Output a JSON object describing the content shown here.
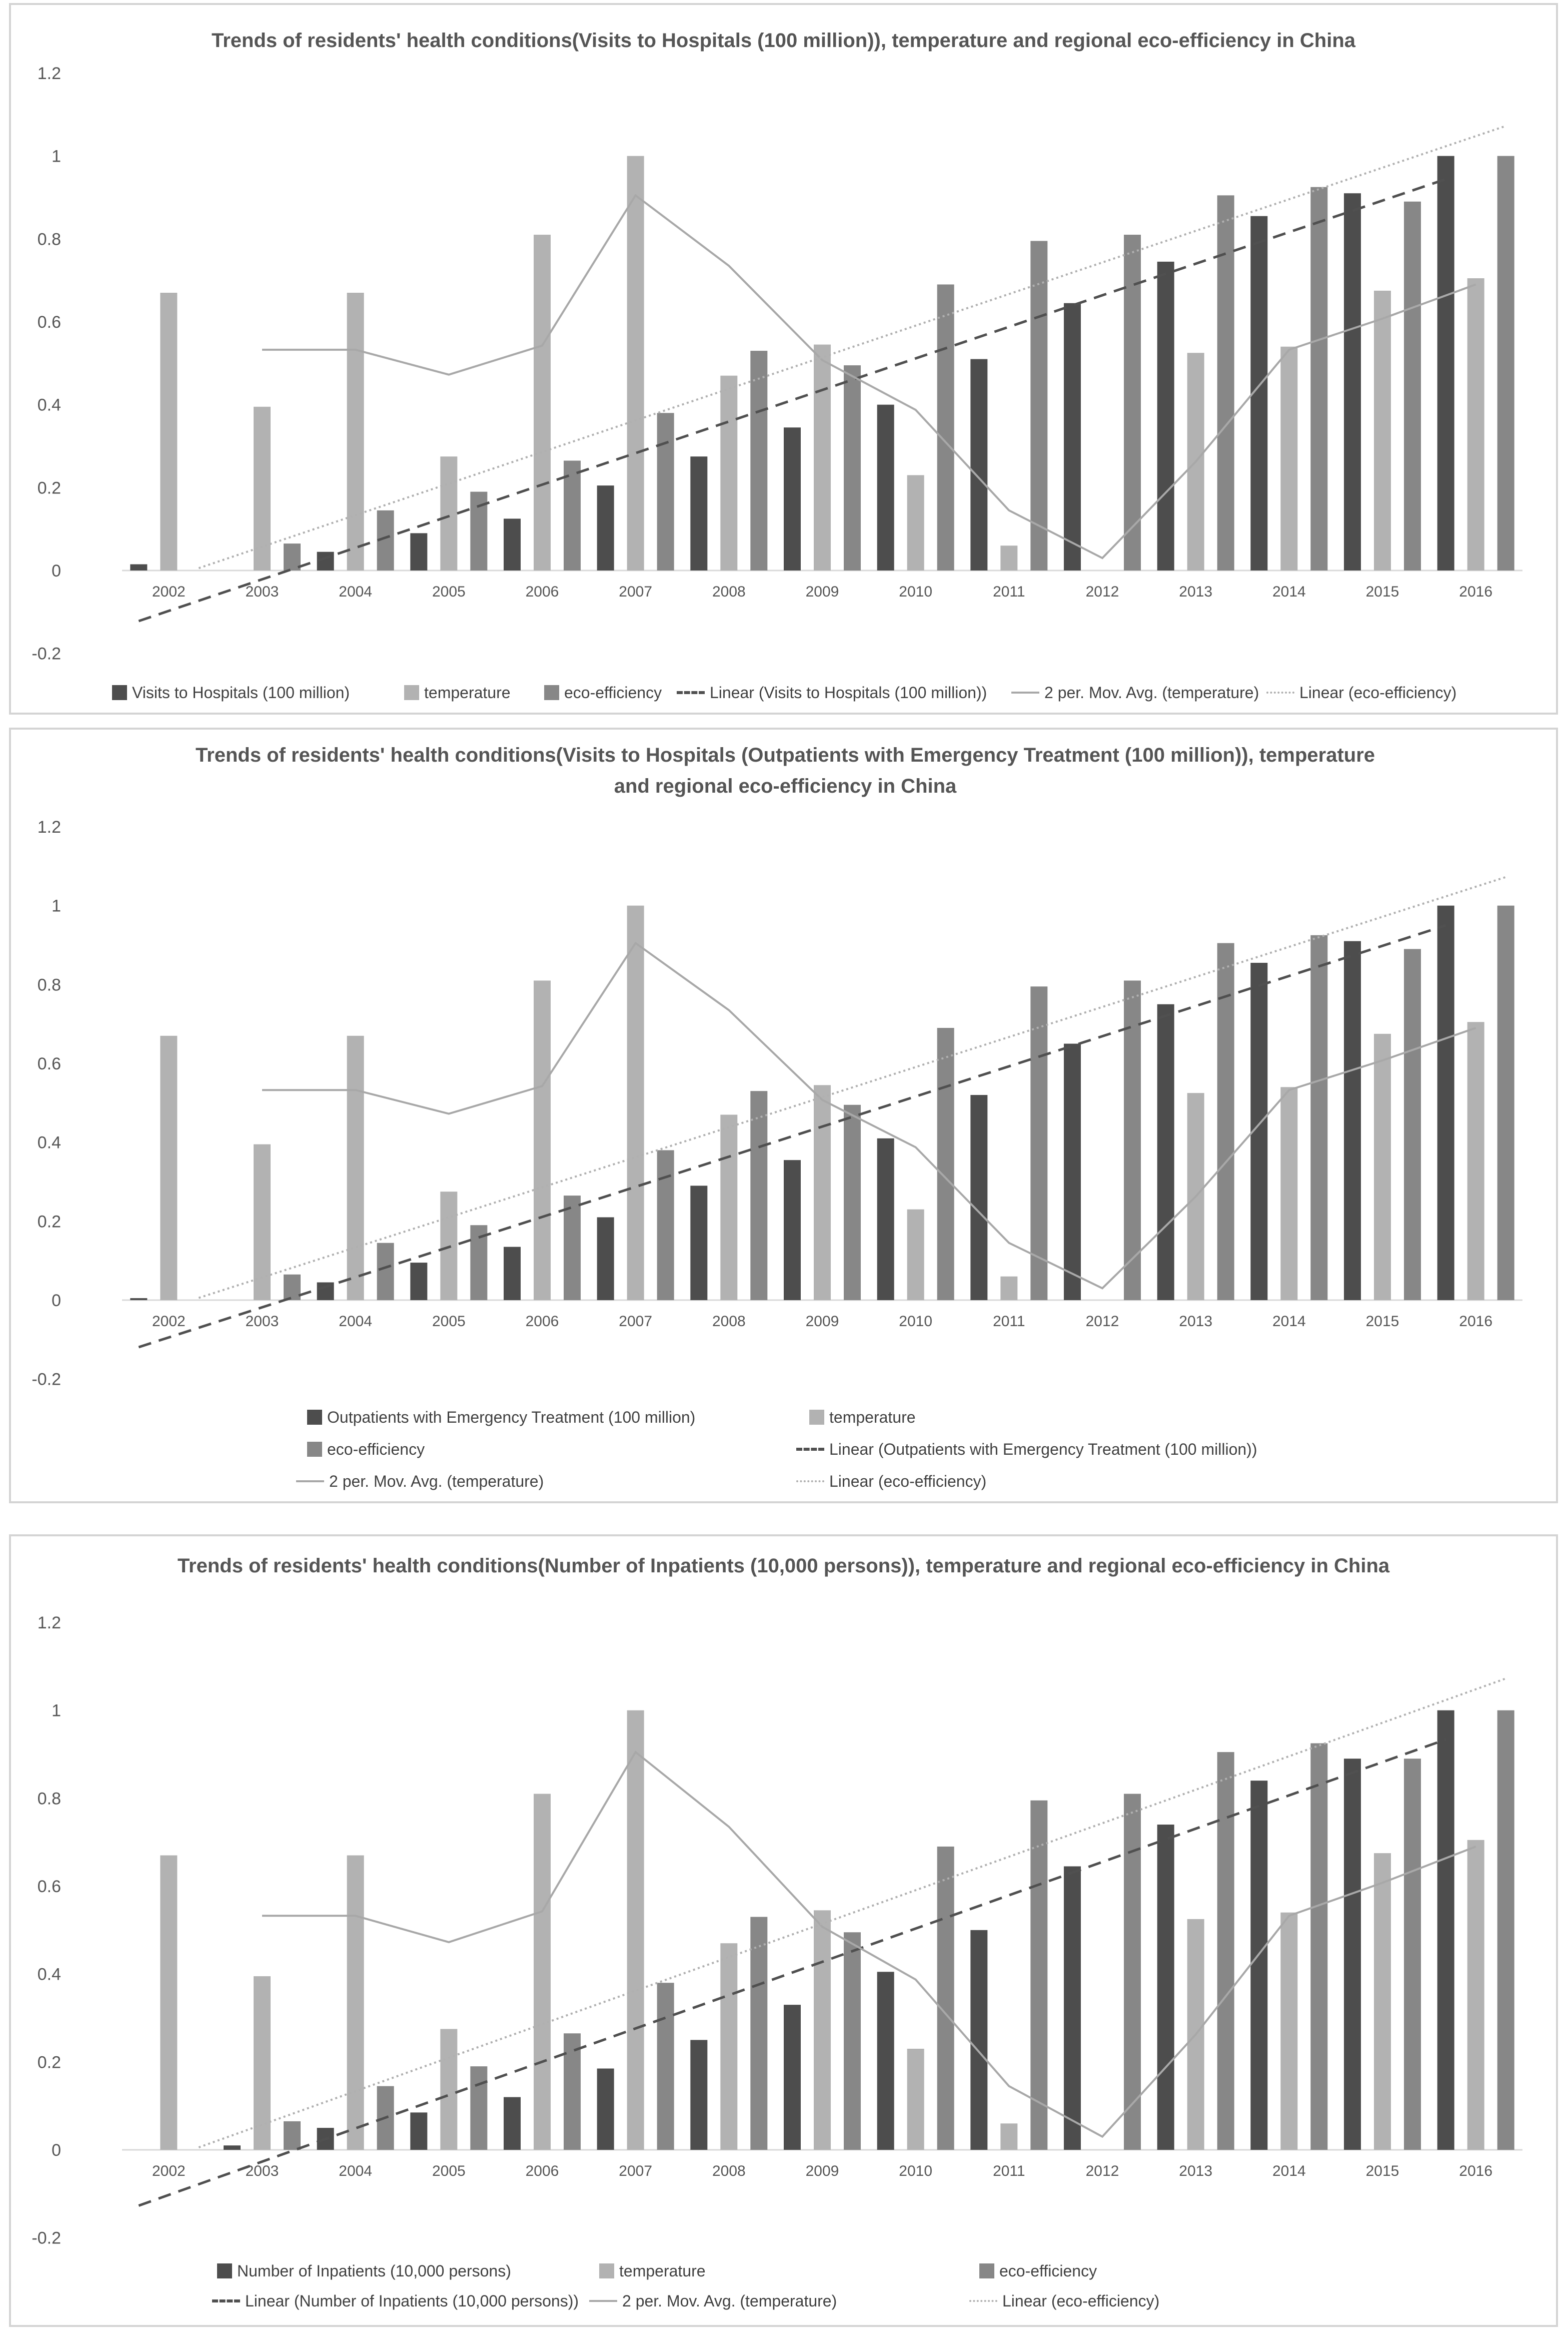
{
  "colors": {
    "series1": "#4d4d4d",
    "temperature": "#b2b2b2",
    "eco": "#878787",
    "trend1": "#505050",
    "avg": "#a8a8a8",
    "trend_eco": "#b0b0b0",
    "axis_text": "#555555",
    "grid": "#d9d9d9"
  },
  "legend_icons": {
    "bar": "square-swatch-icon",
    "dashed": "dashed-line-icon",
    "solid": "solid-line-icon",
    "dotted": "dotted-line-icon"
  },
  "chart_data": [
    {
      "type": "bar",
      "title": "Trends of residents' health conditions(Visits to Hospitals (100 million)), temperature and regional eco-efficiency in China",
      "categories": [
        "2002",
        "2003",
        "2004",
        "2005",
        "2006",
        "2007",
        "2008",
        "2009",
        "2010",
        "2011",
        "2012",
        "2013",
        "2014",
        "2015",
        "2016"
      ],
      "y_ticks": [
        "1.2",
        "1",
        "0.8",
        "0.6",
        "0.4",
        "0.2",
        "0",
        "-0.2"
      ],
      "ylim": [
        -0.2,
        1.2
      ],
      "grid": false,
      "legend_position": "bottom",
      "series": [
        {
          "name": "Visits to Hospitals (100 million)",
          "values": [
            0.015,
            0,
            0.045,
            0.09,
            0.125,
            0.205,
            0.275,
            0.345,
            0.4,
            0.51,
            0.645,
            0.745,
            0.855,
            0.91,
            1.0
          ]
        },
        {
          "name": "temperature",
          "values": [
            0.67,
            0.395,
            0.67,
            0.275,
            0.81,
            1.0,
            0.47,
            0.545,
            0.23,
            0.06,
            0,
            0.525,
            0.54,
            0.675,
            0.705
          ]
        },
        {
          "name": "eco-efficiency",
          "values": [
            0,
            0.065,
            0.145,
            0.19,
            0.265,
            0.38,
            0.53,
            0.495,
            0.69,
            0.795,
            0.81,
            0.905,
            0.925,
            0.89,
            1.0
          ]
        }
      ],
      "overlays": [
        {
          "name": "Linear (Visits to Hospitals (100 million))",
          "kind": "trend",
          "of": 0
        },
        {
          "name": "2 per. Mov. Avg. (temperature)",
          "kind": "movavg",
          "of": 1
        },
        {
          "name": "Linear (eco-efficiency)",
          "kind": "trend",
          "of": 2
        }
      ]
    },
    {
      "type": "bar",
      "title": "Trends of residents' health conditions(Visits to Hospitals (Outpatients with Emergency Treatment (100 million)), temperature and regional eco-efficiency in China",
      "categories": [
        "2002",
        "2003",
        "2004",
        "2005",
        "2006",
        "2007",
        "2008",
        "2009",
        "2010",
        "2011",
        "2012",
        "2013",
        "2014",
        "2015",
        "2016"
      ],
      "y_ticks": [
        "1.2",
        "1",
        "0.8",
        "0.6",
        "0.4",
        "0.2",
        "0",
        "-0.2"
      ],
      "ylim": [
        -0.2,
        1.2
      ],
      "grid": false,
      "legend_position": "bottom",
      "series": [
        {
          "name": "Outpatients with Emergency Treatment  (100 million)",
          "values": [
            0.005,
            0,
            0.045,
            0.095,
            0.135,
            0.21,
            0.29,
            0.355,
            0.41,
            0.52,
            0.65,
            0.75,
            0.855,
            0.91,
            1.0
          ]
        },
        {
          "name": "temperature",
          "values": [
            0.67,
            0.395,
            0.67,
            0.275,
            0.81,
            1.0,
            0.47,
            0.545,
            0.23,
            0.06,
            0,
            0.525,
            0.54,
            0.675,
            0.705
          ]
        },
        {
          "name": "eco-efficiency",
          "values": [
            0,
            0.065,
            0.145,
            0.19,
            0.265,
            0.38,
            0.53,
            0.495,
            0.69,
            0.795,
            0.81,
            0.905,
            0.925,
            0.89,
            1.0
          ]
        }
      ],
      "overlays": [
        {
          "name": "Linear (Outpatients with Emergency Treatment  (100 million))",
          "kind": "trend",
          "of": 0
        },
        {
          "name": "2 per. Mov. Avg. (temperature)",
          "kind": "movavg",
          "of": 1
        },
        {
          "name": "Linear (eco-efficiency)",
          "kind": "trend",
          "of": 2
        }
      ]
    },
    {
      "type": "bar",
      "title": "Trends of residents' health conditions(Number of Inpatients (10,000 persons)), temperature and regional eco-efficiency in China",
      "categories": [
        "2002",
        "2003",
        "2004",
        "2005",
        "2006",
        "2007",
        "2008",
        "2009",
        "2010",
        "2011",
        "2012",
        "2013",
        "2014",
        "2015",
        "2016"
      ],
      "y_ticks": [
        "1.2",
        "1",
        "0.8",
        "0.6",
        "0.4",
        "0.2",
        "0",
        "-0.2"
      ],
      "ylim": [
        -0.2,
        1.2
      ],
      "grid": false,
      "legend_position": "bottom",
      "series": [
        {
          "name": "Number of Inpatients (10,000 persons)",
          "values": [
            0,
            0.01,
            0.05,
            0.085,
            0.12,
            0.185,
            0.25,
            0.33,
            0.405,
            0.5,
            0.645,
            0.74,
            0.84,
            0.89,
            1.0
          ]
        },
        {
          "name": "temperature",
          "values": [
            0.67,
            0.395,
            0.67,
            0.275,
            0.81,
            1.0,
            0.47,
            0.545,
            0.23,
            0.06,
            0,
            0.525,
            0.54,
            0.675,
            0.705
          ]
        },
        {
          "name": "eco-efficiency",
          "values": [
            0,
            0.065,
            0.145,
            0.19,
            0.265,
            0.38,
            0.53,
            0.495,
            0.69,
            0.795,
            0.81,
            0.905,
            0.925,
            0.89,
            1.0
          ]
        }
      ],
      "overlays": [
        {
          "name": "Linear (Number of Inpatients (10,000 persons))",
          "kind": "trend",
          "of": 0
        },
        {
          "name": "2 per. Mov. Avg. (temperature)",
          "kind": "movavg",
          "of": 1
        },
        {
          "name": "Linear (eco-efficiency)",
          "kind": "trend",
          "of": 2
        }
      ]
    }
  ]
}
